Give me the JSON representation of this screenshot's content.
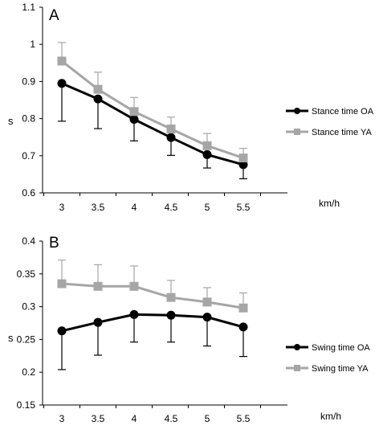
{
  "chart_data": [
    {
      "type": "line",
      "panel_label": "A",
      "ylabel": "s",
      "x_unit_label": "km/h",
      "categories": [
        "3",
        "3.5",
        "4",
        "4.5",
        "5",
        "5.5"
      ],
      "ylim": [
        0.6,
        1.1
      ],
      "yticks": [
        "0.6",
        "0.7",
        "0.8",
        "0.9",
        "1",
        "1.1"
      ],
      "ytick_values": [
        0.6,
        0.7,
        0.8,
        0.9,
        1.0,
        1.1
      ],
      "legend_position": "right",
      "grid": false,
      "series": [
        {
          "name": "Stance time OA",
          "color": "#000000",
          "marker": "circle",
          "values": [
            0.895,
            0.853,
            0.798,
            0.749,
            0.703,
            0.676
          ],
          "error_minus": [
            0.102,
            0.08,
            0.058,
            0.048,
            0.036,
            0.038
          ],
          "error_plus": [
            0,
            0,
            0,
            0,
            0,
            0
          ]
        },
        {
          "name": "Stance time YA",
          "color": "#a6a6a6",
          "marker": "square",
          "values": [
            0.955,
            0.879,
            0.819,
            0.772,
            0.727,
            0.694
          ],
          "error_minus": [
            0,
            0,
            0,
            0,
            0,
            0
          ],
          "error_plus": [
            0.05,
            0.046,
            0.038,
            0.032,
            0.033,
            0.026
          ]
        }
      ]
    },
    {
      "type": "line",
      "panel_label": "B",
      "ylabel": "s",
      "x_unit_label": "km/h",
      "categories": [
        "3",
        "3.5",
        "4",
        "4.5",
        "5",
        "5.5"
      ],
      "ylim": [
        0.15,
        0.4
      ],
      "yticks": [
        "0.15",
        "0.2",
        "0.25",
        "0.3",
        "0.35",
        "0.4"
      ],
      "ytick_values": [
        0.15,
        0.2,
        0.25,
        0.3,
        0.35,
        0.4
      ],
      "legend_position": "right",
      "grid": false,
      "series": [
        {
          "name": "Swing time OA",
          "color": "#000000",
          "marker": "circle",
          "values": [
            0.263,
            0.276,
            0.288,
            0.287,
            0.284,
            0.269
          ],
          "error_minus": [
            0.059,
            0.05,
            0.042,
            0.041,
            0.044,
            0.045
          ],
          "error_plus": [
            0,
            0,
            0,
            0,
            0,
            0
          ]
        },
        {
          "name": "Swing time YA",
          "color": "#a6a6a6",
          "marker": "square",
          "values": [
            0.335,
            0.331,
            0.331,
            0.314,
            0.307,
            0.298
          ],
          "error_minus": [
            0,
            0,
            0,
            0,
            0,
            0
          ],
          "error_plus": [
            0.036,
            0.033,
            0.031,
            0.026,
            0.022,
            0.023
          ]
        }
      ]
    }
  ]
}
